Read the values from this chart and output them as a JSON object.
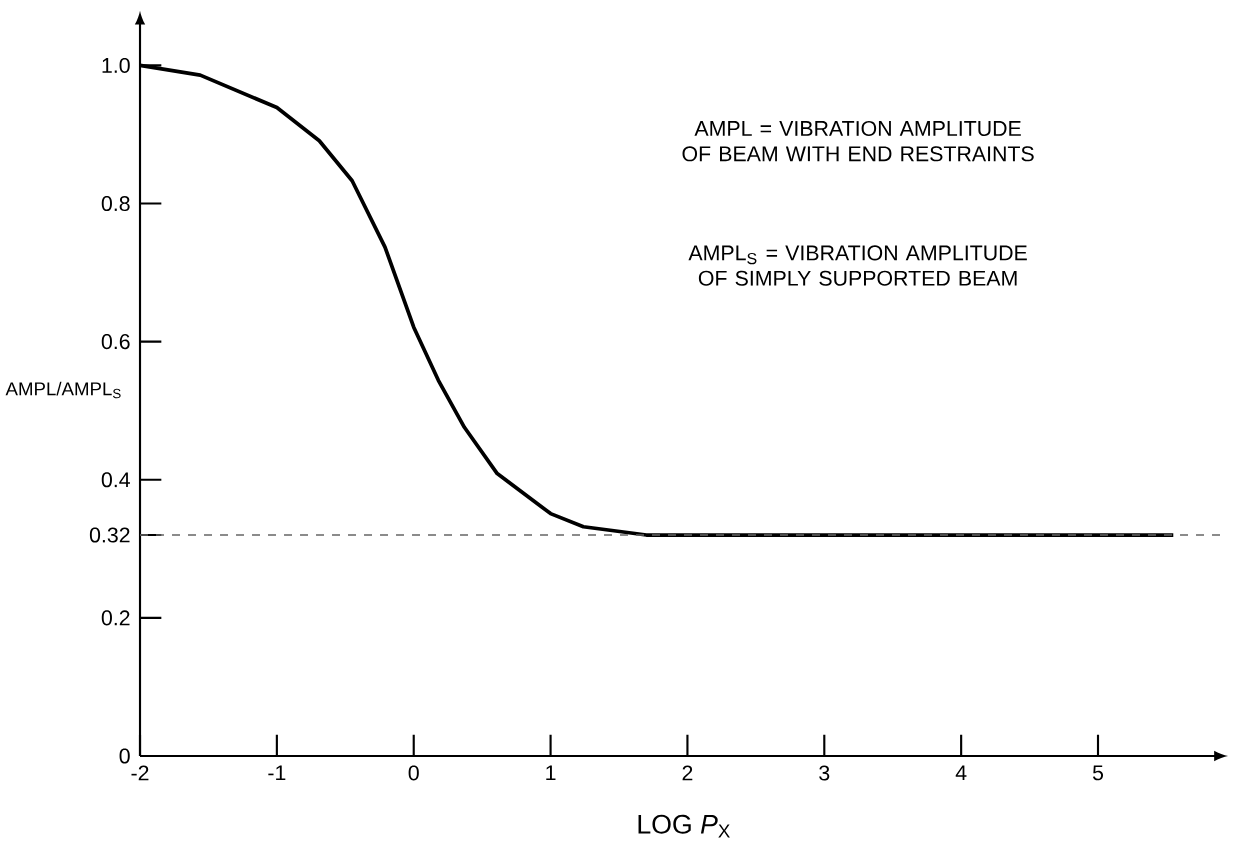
{
  "chart_data": {
    "type": "line",
    "xlabel": "LOG *P*$_{X}$",
    "ylabel": "AMPL/AMPL$_{S}$",
    "x": [
      -2,
      -1.56,
      -1.0,
      -0.69,
      -0.45,
      -0.21,
      0.0,
      0.18,
      0.37,
      0.61,
      1.0,
      1.24,
      1.7,
      2.5,
      3.5,
      4.5,
      5.55
    ],
    "series": [
      {
        "color": "#000000",
        "values": [
          1.0,
          0.986,
          0.939,
          0.891,
          0.833,
          0.737,
          0.621,
          0.544,
          0.476,
          0.409,
          0.351,
          0.332,
          0.32,
          0.32,
          0.32,
          0.32,
          0.32
        ]
      }
    ],
    "xlim": [
      -2,
      5.95
    ],
    "ylim": [
      0,
      1.06
    ],
    "xticks": [
      -2,
      -1,
      0,
      1,
      2,
      3,
      4,
      5
    ],
    "yticks": [
      0,
      0.2,
      0.32,
      0.4,
      0.6,
      0.8,
      {
        "value": 1.0,
        "label": "1.0"
      }
    ],
    "ref_lines": [
      {
        "axis": "y",
        "value": 0.32,
        "line_style": "dashed"
      }
    ],
    "annotations": [
      "AMPL = VIBRATION AMPLITUDE OF BEAM WITH END RESTRAINTS",
      "AMPL$_{S}$ = VIBRATION AMPLITUDE OF SIMPLY SUPPORTED BEAM"
    ],
    "grid": false,
    "marker": "none",
    "line_style": "solid"
  }
}
